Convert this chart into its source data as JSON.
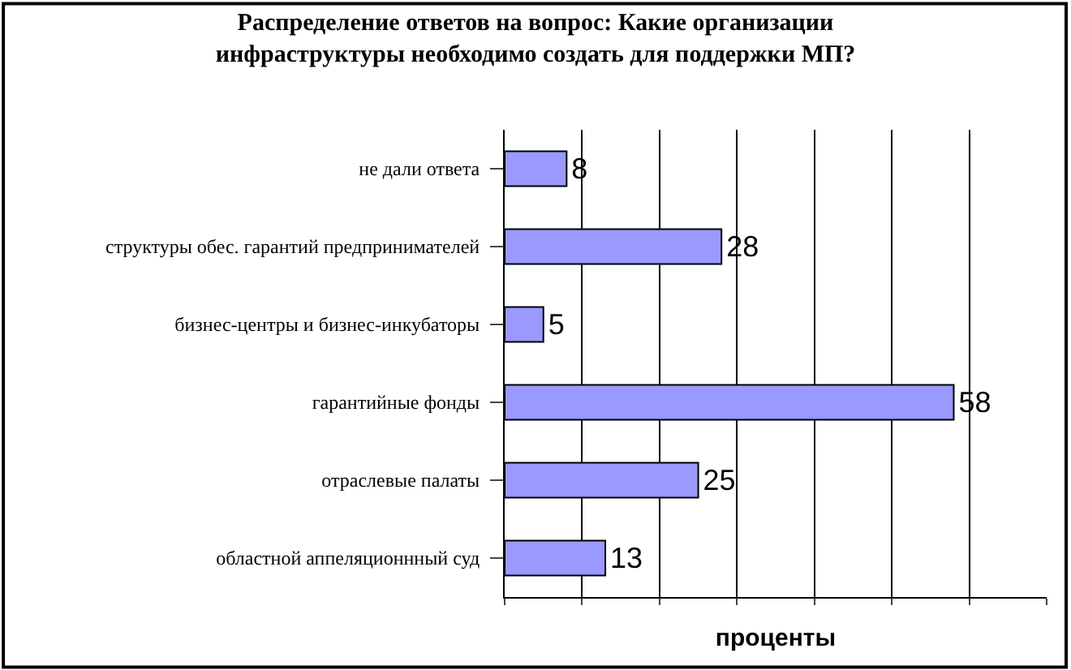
{
  "chart_data": {
    "type": "bar",
    "orientation": "horizontal",
    "title": "Распределение ответов на вопрос: Какие организации\nинфраструктуры необходимо создать для поддержки МП?",
    "xlabel": "проценты",
    "categories": [
      "не дали ответа",
      "структуры обес. гарантий предпринимателей",
      "бизнес-центры и бизнес-инкубаторы",
      "гарантийные фонды",
      "отраслевые палаты",
      "областной аппеляционнный суд"
    ],
    "values": [
      8,
      28,
      5,
      58,
      25,
      13
    ],
    "color": "#9999ff",
    "data_labels": true,
    "xlim": [
      0,
      70
    ],
    "xticks": [
      {
        "value": 0,
        "label": null
      },
      {
        "value": 10,
        "label": null
      },
      {
        "value": 20,
        "label": null
      },
      {
        "value": 30,
        "label": null
      },
      {
        "value": 40,
        "label": null
      },
      {
        "value": 50,
        "label": null
      },
      {
        "value": 60,
        "label": null
      },
      {
        "value": 70,
        "label": null
      }
    ],
    "tick_labels": "y",
    "grid": "x",
    "legend": false
  }
}
